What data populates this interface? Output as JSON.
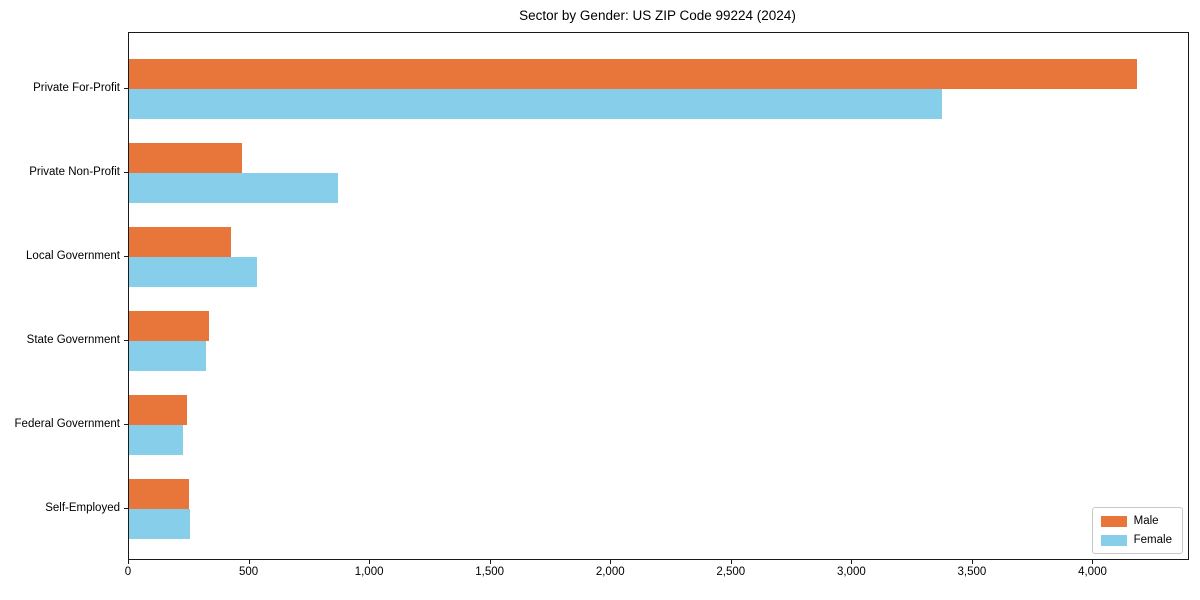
{
  "chart_data": {
    "type": "bar",
    "orientation": "horizontal",
    "title": "Sector by Gender: US ZIP Code 99224 (2024)",
    "categories": [
      "Private For-Profit",
      "Private Non-Profit",
      "Local Government",
      "State Government",
      "Federal Government",
      "Self-Employed"
    ],
    "series": [
      {
        "name": "Male",
        "color": "#e8763b",
        "values": [
          4180,
          470,
          425,
          330,
          240,
          250
        ]
      },
      {
        "name": "Female",
        "color": "#87ceeb",
        "values": [
          3370,
          865,
          530,
          320,
          225,
          255
        ]
      }
    ],
    "xlabel": "",
    "ylabel": "",
    "xlim": [
      0,
      4392
    ],
    "xticks": [
      0,
      500,
      1000,
      1500,
      2000,
      2500,
      3000,
      3500,
      4000
    ],
    "xtick_labels": [
      "0",
      "500",
      "1,000",
      "1,500",
      "2,000",
      "2,500",
      "3,000",
      "3,500",
      "4,000"
    ],
    "legend": {
      "position": "lower right",
      "entries": [
        "Male",
        "Female"
      ]
    },
    "grid": false
  },
  "colors": {
    "male": "#e8763b",
    "female": "#87ceeb",
    "spine": "#1a1a1a",
    "text": "#000000",
    "legend_border": "#c9c9c9",
    "background": "#ffffff"
  }
}
